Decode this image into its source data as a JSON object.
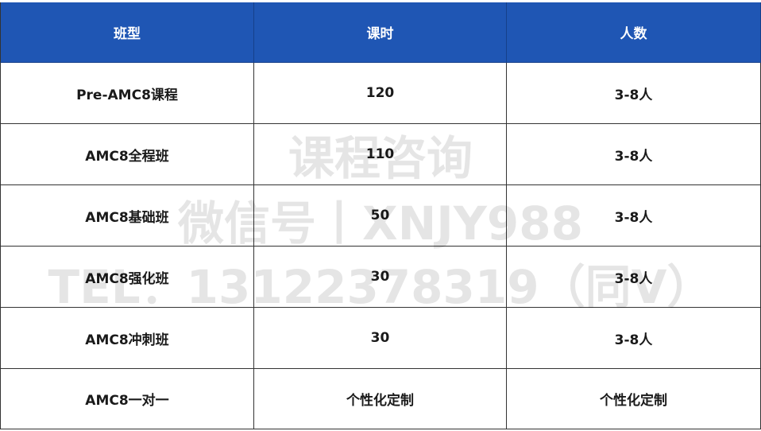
{
  "table": {
    "header": [
      "班型",
      "课时",
      "人数"
    ],
    "rows": [
      [
        "Pre-AMC8课程",
        "120",
        "3-8人"
      ],
      [
        "AMC8全程班",
        "110",
        "3-8人"
      ],
      [
        "AMC8基础班",
        "50",
        "3-8人"
      ],
      [
        "AMC8强化班",
        "30",
        "3-8人"
      ],
      [
        "AMC8冲刺班",
        "30",
        "3-8人"
      ],
      [
        "AMC8一对一",
        "个性化定制",
        "个性化定制"
      ]
    ]
  },
  "watermark": {
    "lines": [
      "课程咨询",
      "微信号丨XNJY988",
      "TEL：13122378319（同V）"
    ]
  }
}
